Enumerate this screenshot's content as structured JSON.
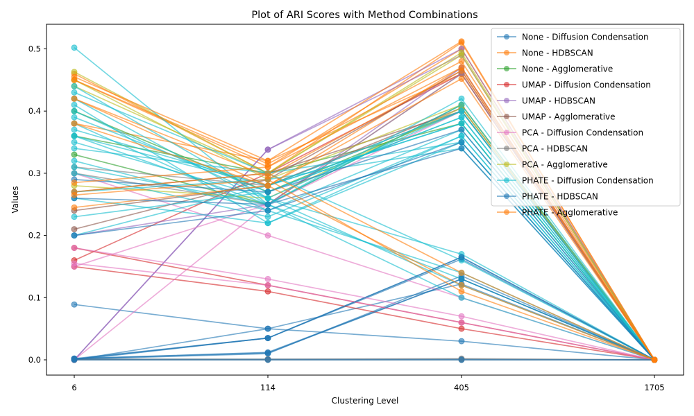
{
  "chart_data": {
    "type": "line",
    "title": "Plot of ARI Scores with Method Combinations",
    "xlabel": "Clustering Level",
    "ylabel": "Values",
    "categories": [
      "6",
      "114",
      "405",
      "1705"
    ],
    "ylim": [
      -0.025,
      0.54
    ],
    "yticks": [
      0.0,
      0.1,
      0.2,
      0.3,
      0.4,
      0.5
    ],
    "ytick_labels": [
      "0.0",
      "0.1",
      "0.2",
      "0.3",
      "0.4",
      "0.5"
    ],
    "grid": false,
    "legend_position": "top-right",
    "series": [
      {
        "name": "None - Diffusion Condensation",
        "color": "#1f77b4",
        "lines": [
          [
            0.089,
            0.05,
            0.03,
            0.0
          ],
          [
            0.002,
            0.035,
            0.165,
            0.0
          ],
          [
            0.001,
            0.01,
            0.135,
            0.0
          ],
          [
            0.0,
            0.05,
            0.122,
            0.0
          ],
          [
            0.002,
            0.012,
            0.13,
            0.0
          ],
          [
            0.001,
            0.001,
            0.001,
            0.0
          ],
          [
            0.0,
            0.035,
            0.162,
            0.0
          ]
        ]
      },
      {
        "name": "None - HDBSCAN",
        "color": "#ff7f0e",
        "lines": [
          [
            0.46,
            0.3,
            0.51,
            0.0
          ],
          [
            0.45,
            0.31,
            0.5,
            0.0
          ],
          [
            0.42,
            0.28,
            0.47,
            0.0
          ],
          [
            0.38,
            0.32,
            0.46,
            0.0
          ]
        ]
      },
      {
        "name": "None - Agglomerative",
        "color": "#2ca02c",
        "lines": [
          [
            0.4,
            0.27,
            0.4,
            0.0
          ],
          [
            0.36,
            0.3,
            0.38,
            0.0
          ],
          [
            0.33,
            0.25,
            0.41,
            0.0
          ]
        ]
      },
      {
        "name": "UMAP - Diffusion Condensation",
        "color": "#d62728",
        "lines": [
          [
            0.16,
            0.3,
            0.46,
            0.0
          ],
          [
            0.18,
            0.12,
            0.06,
            0.0
          ],
          [
            0.15,
            0.11,
            0.05,
            0.0
          ]
        ]
      },
      {
        "name": "UMAP - HDBSCAN",
        "color": "#9467bd",
        "lines": [
          [
            0.0,
            0.338,
            0.5,
            0.0
          ],
          [
            0.0,
            0.338,
            0.49,
            0.0
          ],
          [
            0.2,
            0.25,
            0.47,
            0.0
          ]
        ]
      },
      {
        "name": "UMAP - Agglomerative",
        "color": "#8c564b",
        "lines": [
          [
            0.21,
            0.29,
            0.465,
            0.0
          ],
          [
            0.24,
            0.28,
            0.405,
            0.0
          ],
          [
            0.27,
            0.3,
            0.4,
            0.0
          ]
        ]
      },
      {
        "name": "PCA - Diffusion Condensation",
        "color": "#e377c2",
        "lines": [
          [
            0.15,
            0.25,
            0.46,
            0.0
          ],
          [
            0.0,
            0.25,
            0.4,
            0.0
          ],
          [
            0.18,
            0.13,
            0.07,
            0.0
          ],
          [
            0.155,
            0.12,
            0.06,
            0.0
          ],
          [
            0.3,
            0.2,
            0.1,
            0.0
          ]
        ]
      },
      {
        "name": "PCA - HDBSCAN",
        "color": "#7f7f7f",
        "lines": [
          [
            0.0,
            0.0,
            0.0,
            0.0
          ],
          [
            0.001,
            0.001,
            0.002,
            0.0
          ],
          [
            0.3,
            0.25,
            0.46,
            0.0
          ],
          [
            0.31,
            0.28,
            0.4,
            0.0
          ]
        ]
      },
      {
        "name": "PCA - Agglomerative",
        "color": "#bcbd22",
        "lines": [
          [
            0.463,
            0.3,
            0.494,
            0.0
          ],
          [
            0.44,
            0.3,
            0.49,
            0.0
          ],
          [
            0.45,
            0.29,
            0.41,
            0.0
          ],
          [
            0.28,
            0.26,
            0.405,
            0.0
          ]
        ]
      },
      {
        "name": "PHATE - Diffusion Condensation",
        "color": "#17becf",
        "lines": [
          [
            0.502,
            0.25,
            0.42,
            0.0
          ],
          [
            0.43,
            0.3,
            0.35,
            0.0
          ],
          [
            0.41,
            0.22,
            0.36,
            0.0
          ],
          [
            0.4,
            0.26,
            0.17,
            0.0
          ],
          [
            0.39,
            0.27,
            0.39,
            0.0
          ],
          [
            0.37,
            0.28,
            0.38,
            0.0
          ],
          [
            0.36,
            0.25,
            0.41,
            0.0
          ],
          [
            0.35,
            0.26,
            0.4,
            0.0
          ],
          [
            0.32,
            0.24,
            0.37,
            0.0
          ],
          [
            0.3,
            0.23,
            0.36,
            0.0
          ],
          [
            0.27,
            0.29,
            0.34,
            0.0
          ],
          [
            0.26,
            0.22,
            0.35,
            0.0
          ],
          [
            0.23,
            0.27,
            0.39,
            0.0
          ],
          [
            0.2,
            0.28,
            0.38,
            0.0
          ],
          [
            0.44,
            0.26,
            0.12,
            0.0
          ],
          [
            0.42,
            0.25,
            0.1,
            0.0
          ],
          [
            0.38,
            0.24,
            0.14,
            0.0
          ],
          [
            0.34,
            0.3,
            0.16,
            0.0
          ],
          [
            0.31,
            0.25,
            0.13,
            0.0
          ],
          [
            0.36,
            0.28,
            0.4,
            0.0
          ]
        ]
      },
      {
        "name": "PHATE - HDBSCAN",
        "color": "#1f77b4",
        "lines": [
          [
            0.0,
            0.0,
            0.0,
            0.0
          ],
          [
            0.002,
            0.011,
            0.13,
            0.0
          ],
          [
            0.001,
            0.035,
            0.165,
            0.0
          ],
          [
            0.29,
            0.27,
            0.37,
            0.0
          ],
          [
            0.26,
            0.25,
            0.34,
            0.0
          ],
          [
            0.2,
            0.24,
            0.35,
            0.0
          ]
        ]
      },
      {
        "name": "PHATE - Agglomerative",
        "color": "#ff7f0e",
        "lines": [
          [
            0.455,
            0.32,
            0.512,
            0.0
          ],
          [
            0.45,
            0.315,
            0.48,
            0.0
          ],
          [
            0.42,
            0.295,
            0.465,
            0.0
          ],
          [
            0.38,
            0.28,
            0.452,
            0.0
          ],
          [
            0.285,
            0.31,
            0.47,
            0.0
          ],
          [
            0.27,
            0.3,
            0.14,
            0.0
          ],
          [
            0.245,
            0.28,
            0.12,
            0.0
          ],
          [
            0.265,
            0.29,
            0.11,
            0.0
          ]
        ]
      }
    ]
  }
}
